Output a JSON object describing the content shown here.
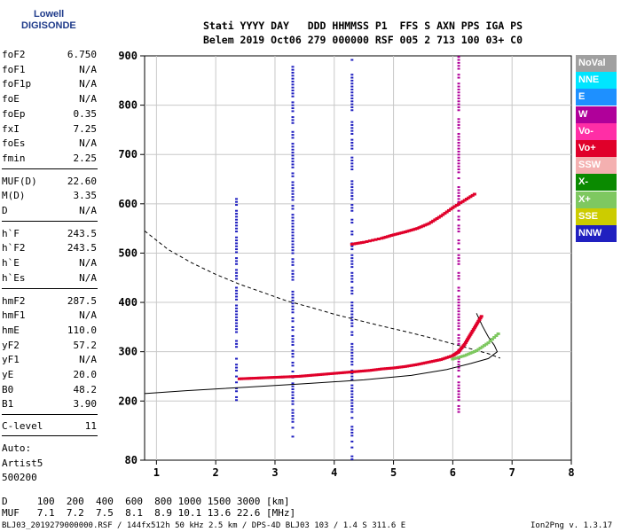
{
  "logo": {
    "line1": "Lowell",
    "line2": "DIGISONDE"
  },
  "header": {
    "line1": "Stati YYYY DAY   DDD HHMMSS P1  FFS S AXN PPS IGA PS",
    "line2": "Belem 2019 Oct06 279 000000 RSF 005 2 713 100 03+ C0"
  },
  "params_a": [
    {
      "name": "foF2",
      "value": "6.750"
    },
    {
      "name": "foF1",
      "value": "N/A"
    },
    {
      "name": "foF1p",
      "value": "N/A"
    },
    {
      "name": "foE",
      "value": "N/A"
    },
    {
      "name": "foEp",
      "value": "0.35"
    },
    {
      "name": "fxI",
      "value": "7.25"
    },
    {
      "name": "foEs",
      "value": "N/A"
    },
    {
      "name": "fmin",
      "value": "2.25"
    }
  ],
  "params_b": [
    {
      "name": "MUF(D)",
      "value": "22.60"
    },
    {
      "name": "M(D)",
      "value": "3.35"
    },
    {
      "name": "D",
      "value": "N/A"
    }
  ],
  "params_c": [
    {
      "name": "h`F",
      "value": "243.5"
    },
    {
      "name": "h`F2",
      "value": "243.5"
    },
    {
      "name": "h`E",
      "value": "N/A"
    },
    {
      "name": "h`Es",
      "value": "N/A"
    }
  ],
  "params_d": [
    {
      "name": "hmF2",
      "value": "287.5"
    },
    {
      "name": "hmF1",
      "value": "N/A"
    },
    {
      "name": "hmE",
      "value": "110.0"
    },
    {
      "name": "yF2",
      "value": "57.2"
    },
    {
      "name": "yF1",
      "value": "N/A"
    },
    {
      "name": "yE",
      "value": "20.0"
    },
    {
      "name": "B0",
      "value": "48.2"
    },
    {
      "name": "B1",
      "value": "3.90"
    }
  ],
  "clevel": {
    "name": "C-level",
    "value": "11"
  },
  "auto": {
    "line1": "Auto:",
    "line2": "Artist5",
    "line3": "500200"
  },
  "bottom": {
    "d_line": "D     100  200  400  600  800 1000 1500 3000 [km]",
    "muf_line": "MUF   7.1  7.2  7.5  8.1  8.9 10.1 13.6 22.6 [MHz]"
  },
  "footer": "BLJ03_2019279000000.RSF / 144fx512h 50 kHz 2.5 km / DPS-4D BLJ03 103 / 1.4 S 311.6 E",
  "version": "Ion2Png v. 1.3.17",
  "legend": [
    {
      "label": "NoVal",
      "color": "#a0a0a0"
    },
    {
      "label": "NNE",
      "color": "#00e5ff"
    },
    {
      "label": "E",
      "color": "#1e90ff"
    },
    {
      "label": "W",
      "color": "#b0009a"
    },
    {
      "label": "Vo-",
      "color": "#ff2ea6"
    },
    {
      "label": "Vo+",
      "color": "#e0002a"
    },
    {
      "label": "SSW",
      "color": "#f4b0b0"
    },
    {
      "label": "X-",
      "color": "#0a8a00"
    },
    {
      "label": "X+",
      "color": "#7ec860"
    },
    {
      "label": "SSE",
      "color": "#cccc00"
    },
    {
      "label": "NNW",
      "color": "#2020c0"
    }
  ],
  "chart_data": {
    "type": "scatter",
    "x_ticks": [
      1,
      2,
      3,
      4,
      5,
      6,
      7,
      8
    ],
    "y_ticks": [
      80,
      200,
      300,
      400,
      500,
      600,
      700,
      800,
      900
    ],
    "xlim": [
      0.8,
      8.0
    ],
    "ylim": [
      80,
      900
    ],
    "grid": true,
    "xlabel": "",
    "ylabel": "",
    "traces": [
      {
        "name": "o-trace",
        "color": "#e0002a",
        "x": [
          2.4,
          2.6,
          2.8,
          3.0,
          3.2,
          3.4,
          3.6,
          3.8,
          4.0,
          4.2,
          4.4,
          4.6,
          4.8,
          5.0,
          5.2,
          5.4,
          5.6,
          5.8,
          6.0,
          6.1
        ],
        "y": [
          245,
          246,
          247,
          248,
          249,
          250,
          252,
          254,
          256,
          258,
          260,
          262,
          265,
          267,
          270,
          274,
          279,
          284,
          292,
          300
        ]
      },
      {
        "name": "x-trace",
        "color": "#7ec860",
        "x": [
          6.0,
          6.2,
          6.4,
          6.6,
          6.8
        ],
        "y": [
          285,
          292,
          302,
          318,
          340
        ]
      },
      {
        "name": "o-trace-rise",
        "color": "#e0002a",
        "x": [
          6.1,
          6.2,
          6.3,
          6.4,
          6.5
        ],
        "y": [
          300,
          315,
          335,
          355,
          375
        ]
      },
      {
        "name": "multi-hop",
        "color": "#e0002a",
        "x": [
          4.3,
          4.5,
          4.8,
          5.0,
          5.2,
          5.4,
          5.6,
          5.8,
          6.0,
          6.2,
          6.4
        ],
        "y": [
          518,
          522,
          530,
          537,
          543,
          550,
          560,
          575,
          592,
          607,
          622
        ]
      }
    ],
    "vertical_bars": [
      {
        "x": 3.3,
        "ymin": 120,
        "ymax": 880,
        "color": "#2020c0"
      },
      {
        "x": 4.3,
        "ymin": 80,
        "ymax": 900,
        "color": "#2020c0"
      },
      {
        "x": 6.1,
        "ymin": 170,
        "ymax": 900,
        "color": "#b0009a"
      },
      {
        "x": 2.35,
        "ymin": 200,
        "ymax": 620,
        "color": "#2020c0"
      }
    ],
    "profile_solid": {
      "x": [
        0.8,
        1.5,
        2.5,
        3.5,
        4.5,
        5.3,
        5.9,
        6.3,
        6.6,
        6.75,
        6.7,
        6.6,
        6.5,
        6.4
      ],
      "y": [
        215,
        221,
        228,
        235,
        243,
        252,
        264,
        276,
        286,
        300,
        313,
        330,
        352,
        378
      ]
    },
    "profile_dashed": {
      "x": [
        0.8,
        1.2,
        1.6,
        2.0,
        2.4,
        2.8,
        3.2,
        3.6,
        4.0,
        4.4,
        4.8,
        5.2,
        5.6,
        6.0,
        6.3,
        6.6,
        6.8
      ],
      "y": [
        545,
        507,
        480,
        457,
        437,
        420,
        403,
        390,
        376,
        364,
        352,
        341,
        329,
        316,
        306,
        296,
        287
      ]
    }
  }
}
